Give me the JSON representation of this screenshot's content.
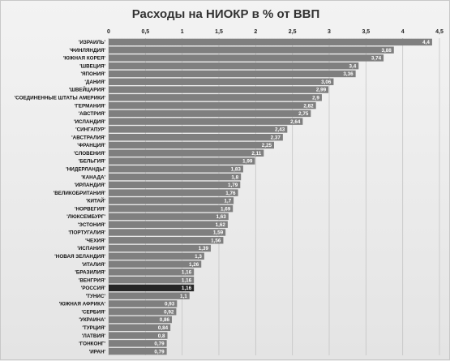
{
  "chart_data": {
    "type": "bar",
    "orientation": "horizontal",
    "title": "Расходы на НИОКР в % от ВВП",
    "xlabel": "",
    "ylabel": "",
    "xlim": [
      0,
      4.5
    ],
    "ticks": [
      "0",
      "0,5",
      "1",
      "1,5",
      "2",
      "2,5",
      "3",
      "3,5",
      "4",
      "4,5"
    ],
    "grid": true,
    "legend": "none",
    "bar_color": "#7f7f7f",
    "highlight_color": "#262626",
    "highlight_category": "'РОССИЯ'",
    "categories": [
      "'ИЗРАИЛЬ'",
      "'ФИНЛЯНДИЯ'",
      "'ЮЖНАЯ КОРЕЯ'",
      "'ШВЕЦИЯ'",
      "'ЯПОНИЯ'",
      "'ДАНИЯ'",
      "'ШВЕЙЦАРИЯ'",
      "'СОЕДИНЕННЫЕ ШТАТЫ АМЕРИКИ'",
      "'ГЕРМАНИЯ'",
      "'АВСТРИЯ'",
      "'ИСЛАНДИЯ'",
      "'СИНГАПУР'",
      "'АВСТРАЛИЯ'",
      "'ФРАНЦИЯ'",
      "'СЛОВЕНИЯ'",
      "'БЕЛЬГИЯ'",
      "'НИДЕРЛАНДЫ'",
      "'КАНАДА'",
      "'ИРЛАНДИЯ'",
      "'ВЕЛИКОБРИТАНИЯ'",
      "'КИТАЙ'",
      "'НОРВЕГИЯ'",
      "'ЛЮКСЕМБУРГ'",
      "'ЭСТОНИЯ'",
      "'ПОРТУГАЛИЯ'",
      "'ЧЕХИЯ'",
      "'ИСПАНИЯ'",
      "'НОВАЯ ЗЕЛАНДИЯ'",
      "'ИТАЛИЯ'",
      "'БРАЗИЛИЯ'",
      "'ВЕНГРИЯ'",
      "'РОССИЯ'",
      "'ТУНИС'",
      "'ЮЖНАЯ АФРИКА'",
      "'СЕРБИЯ'",
      "'УКРАИНА'",
      "'ТУРЦИЯ'",
      "'ЛАТВИЯ'",
      "'ГОНКОНГ'",
      "'ИРАН'"
    ],
    "values": [
      4.4,
      3.88,
      3.74,
      3.4,
      3.36,
      3.06,
      2.99,
      2.9,
      2.82,
      2.75,
      2.64,
      2.43,
      2.37,
      2.25,
      2.11,
      1.99,
      1.83,
      1.8,
      1.79,
      1.76,
      1.7,
      1.69,
      1.63,
      1.62,
      1.59,
      1.56,
      1.39,
      1.3,
      1.26,
      1.16,
      1.16,
      1.16,
      1.1,
      0.93,
      0.92,
      0.86,
      0.84,
      0.8,
      0.79,
      0.79
    ],
    "value_labels": [
      "4,4",
      "3,88",
      "3,74",
      "3,4",
      "3,36",
      "3,06",
      "2,99",
      "2,9",
      "2,82",
      "2,75",
      "2,64",
      "2,43",
      "2,37",
      "2,25",
      "2,11",
      "1,99",
      "1,83",
      "1,8",
      "1,79",
      "1,76",
      "1,7",
      "1,69",
      "1,63",
      "1,62",
      "1,59",
      "1,56",
      "1,39",
      "1,3",
      "1,26",
      "1,16",
      "1,16",
      "1,16",
      "1,1",
      "0,93",
      "0,92",
      "0,86",
      "0,84",
      "0,8",
      "0,79",
      "0,79"
    ]
  }
}
